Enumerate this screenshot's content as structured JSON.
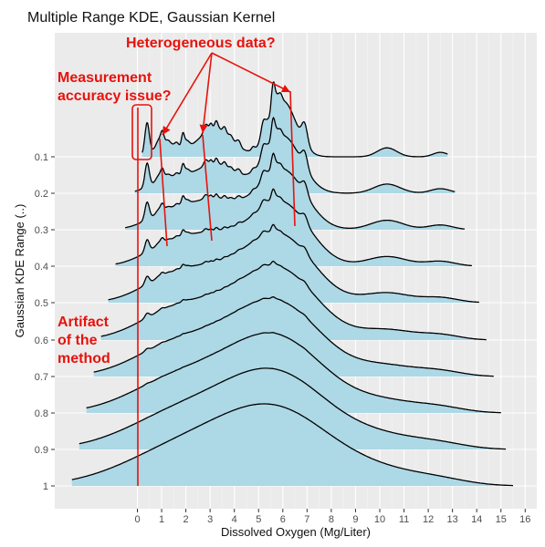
{
  "chart_data": {
    "type": "ridgeline",
    "title": "Multiple Range KDE, Gaussian Kernel",
    "xlabel": "Dissolved Oxygen (Mg/Liter)",
    "ylabel": "Gaussian KDE Range (..)",
    "x_ticks": [
      0,
      1,
      2,
      3,
      4,
      5,
      6,
      7,
      8,
      9,
      10,
      11,
      12,
      13,
      14,
      15,
      16
    ],
    "x_tick_labels": [
      "0",
      "1",
      "2",
      "3",
      "4",
      "5",
      "6",
      "7",
      "8",
      "9",
      "10",
      "11",
      "12",
      "13",
      "14",
      "15",
      "16"
    ],
    "xlim": [
      -2.7,
      16.7
    ],
    "y_categories": [
      "1",
      "0.9",
      "0.8",
      "0.7",
      "0.6",
      "0.5",
      "0.4",
      "0.3",
      "0.2",
      "0.1"
    ],
    "grid": true,
    "fill_color": "#add8e6",
    "panel_color": "#ebebeb",
    "ridges": [
      {
        "range": "0.1",
        "x_min": 0.2,
        "x_max": 12.8,
        "peak_x": 5.6
      },
      {
        "range": "0.2",
        "x_min": -0.1,
        "x_max": 13.1,
        "peak_x": 5.8
      },
      {
        "range": "0.3",
        "x_min": -0.5,
        "x_max": 13.5,
        "peak_x": 5.8
      },
      {
        "range": "0.4",
        "x_min": -0.9,
        "x_max": 13.8,
        "peak_x": 5.9
      },
      {
        "range": "0.5",
        "x_min": -1.2,
        "x_max": 14.1,
        "peak_x": 6.0
      },
      {
        "range": "0.6",
        "x_min": -1.5,
        "x_max": 14.4,
        "peak_x": 6.0
      },
      {
        "range": "0.7",
        "x_min": -1.8,
        "x_max": 14.7,
        "peak_x": 6.0
      },
      {
        "range": "0.8",
        "x_min": -2.1,
        "x_max": 15.0,
        "peak_x": 6.1
      },
      {
        "range": "0.9",
        "x_min": -2.4,
        "x_max": 15.2,
        "peak_x": 6.1
      },
      {
        "range": "1",
        "x_min": -2.7,
        "x_max": 15.5,
        "peak_x": 6.1
      }
    ],
    "annotations": {
      "heterogeneous": "Heterogeneous data?",
      "measurement_line1": "Measurement",
      "measurement_line2": "accuracy issue?",
      "artifact_line1": "Artifact",
      "artifact_line2": "of the",
      "artifact_line3": "method",
      "color": "#e8120c"
    }
  }
}
